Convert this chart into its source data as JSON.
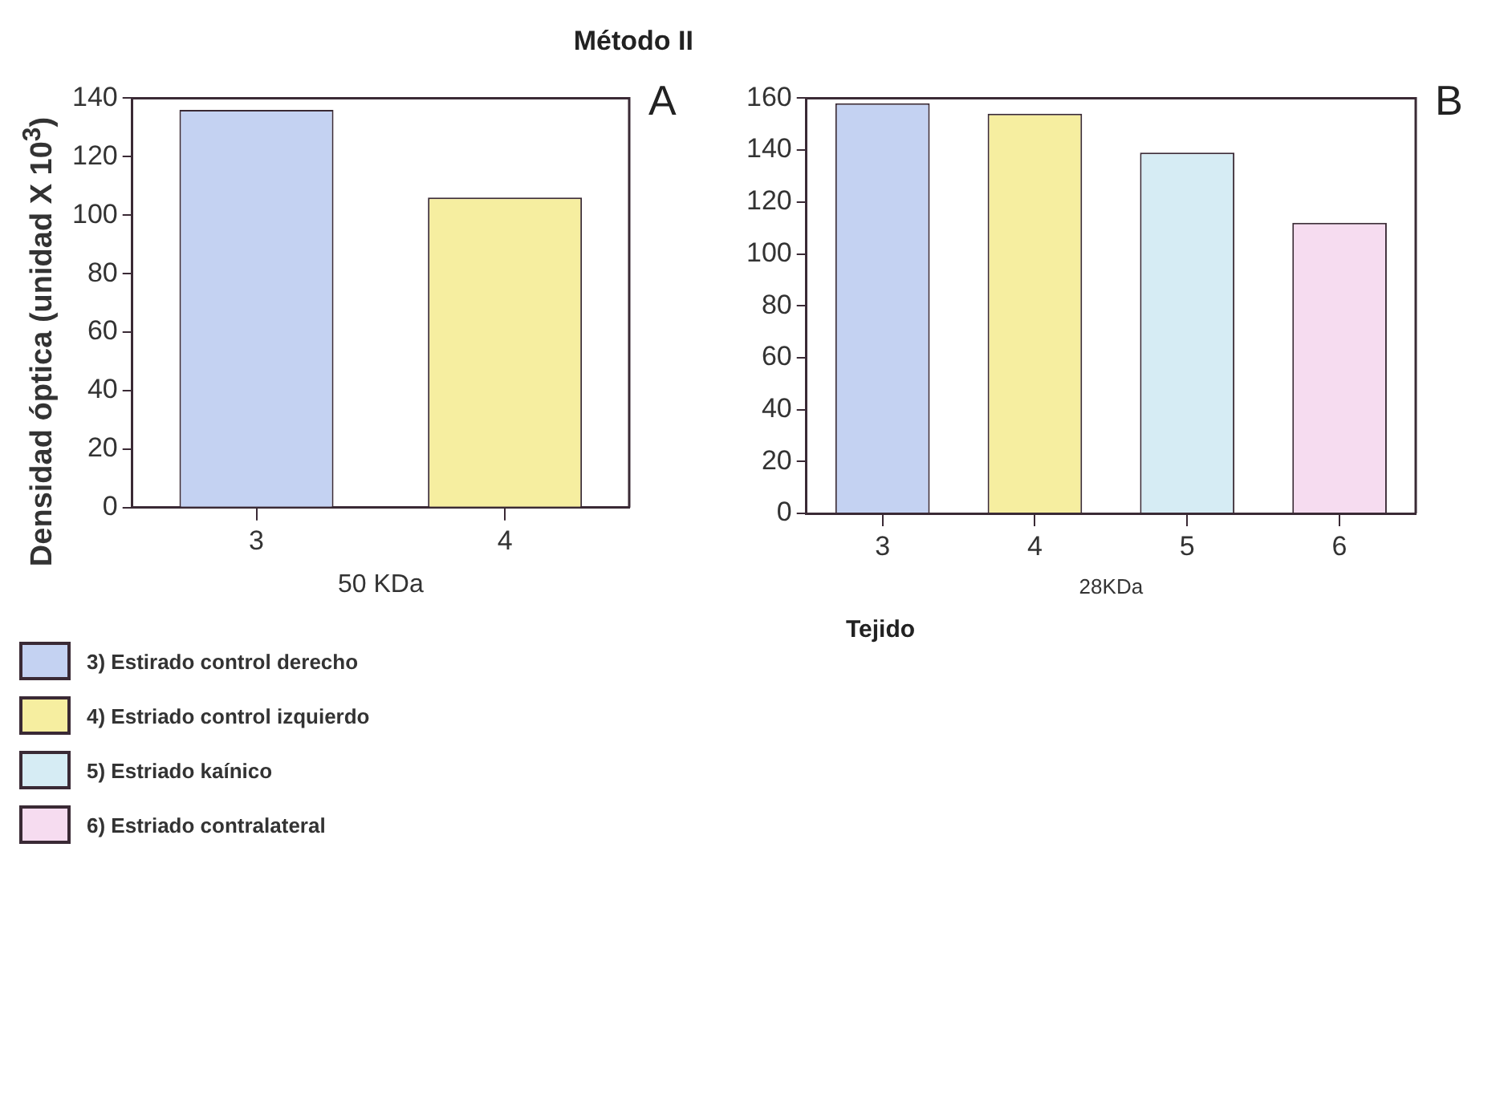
{
  "chart_data": [
    {
      "type": "bar",
      "title": "Método II",
      "ylabel": "Densidad óptica (unidad X 10$^{3}$)",
      "xlabel": "50 KDa",
      "annotations": [
        "A"
      ],
      "categories": [
        "3",
        "4"
      ],
      "ylim": [
        0,
        140
      ],
      "yticks": [
        0,
        20,
        40,
        60,
        80,
        100,
        120,
        140
      ],
      "grid": false,
      "legend": false,
      "series": [
        {
          "color": "#c4d2f2",
          "values": [
            136,
            null
          ]
        },
        {
          "color": "#f6eea0",
          "values": [
            null,
            106
          ]
        }
      ]
    },
    {
      "type": "bar",
      "xlabel": "28KDa",
      "annotations": [
        "B",
        "Tejido"
      ],
      "categories": [
        "3",
        "4",
        "5",
        "6"
      ],
      "ylim": [
        0,
        160
      ],
      "yticks": [
        0,
        20,
        40,
        60,
        80,
        100,
        120,
        140,
        160
      ],
      "grid": false,
      "legend": "bottom left",
      "series": [
        {
          "name": "3) Estirado control derecho",
          "color": "#c4d2f2",
          "values": [
            158,
            null,
            null,
            null
          ]
        },
        {
          "name": "4) Estriado control izquierdo",
          "color": "#f6eea0",
          "values": [
            null,
            154,
            null,
            null
          ]
        },
        {
          "name": "5) Estriado kaínico",
          "color": "#d6ecf4",
          "values": [
            null,
            null,
            139,
            null
          ]
        },
        {
          "name": "6) Estriado contralateral",
          "color": "#f6dcf0",
          "values": [
            null,
            null,
            null,
            112
          ]
        }
      ]
    }
  ]
}
